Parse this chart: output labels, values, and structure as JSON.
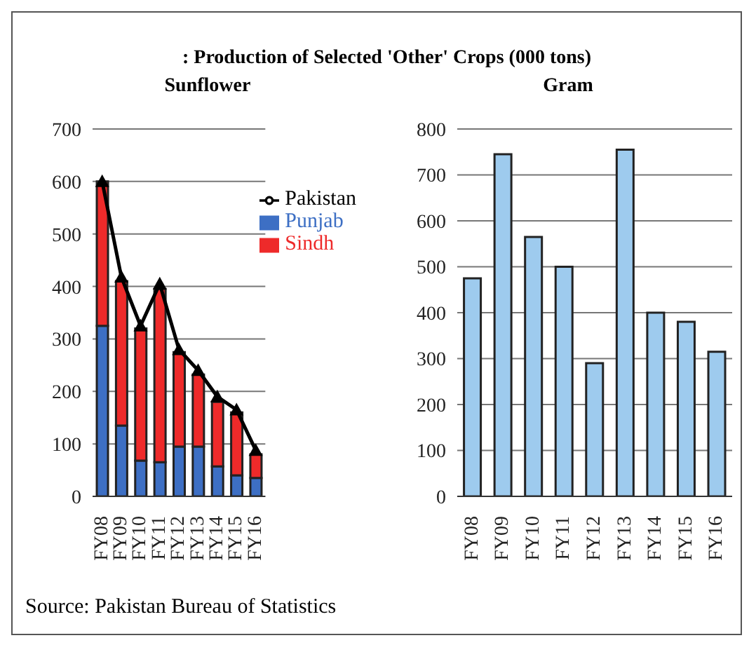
{
  "chart_data": [
    {
      "type": "bar",
      "title": ": Production of Selected 'Other' Crops (000 tons)",
      "subtitle": "Sunflower",
      "categories": [
        "FY08",
        "FY09",
        "FY10",
        "FY11",
        "FY12",
        "FY13",
        "FY14",
        "FY15",
        "FY16"
      ],
      "stacked": true,
      "series": [
        {
          "name": "Punjab",
          "color": "#3d6fc4",
          "values": [
            325,
            135,
            68,
            65,
            95,
            95,
            57,
            40,
            35
          ]
        },
        {
          "name": "Sindh",
          "color": "#ee2a2a",
          "values": [
            275,
            275,
            252,
            330,
            180,
            137,
            123,
            120,
            45
          ]
        },
        {
          "name": "Pakistan",
          "type": "line",
          "color": "#000000",
          "marker": "triangle",
          "values": [
            600,
            418,
            325,
            405,
            280,
            240,
            190,
            165,
            88
          ]
        }
      ],
      "ylim": [
        0,
        700
      ],
      "yticks": [
        0,
        100,
        200,
        300,
        400,
        500,
        600,
        700
      ],
      "grid": "y",
      "legend": "top right",
      "annotations": [
        "Source: Pakistan Bureau of Statistics"
      ]
    },
    {
      "type": "bar",
      "title": "Gram",
      "categories": [
        "FY08",
        "FY09",
        "FY10",
        "FY11",
        "FY12",
        "FY13",
        "FY14",
        "FY15",
        "FY16"
      ],
      "series": [
        {
          "color": "#9ecbee",
          "values": [
            475,
            745,
            565,
            500,
            290,
            755,
            400,
            380,
            315
          ]
        }
      ],
      "ylim": [
        0,
        800
      ],
      "yticks": [
        0,
        100,
        200,
        300,
        400,
        500,
        600,
        700,
        800
      ],
      "grid": "y"
    }
  ]
}
